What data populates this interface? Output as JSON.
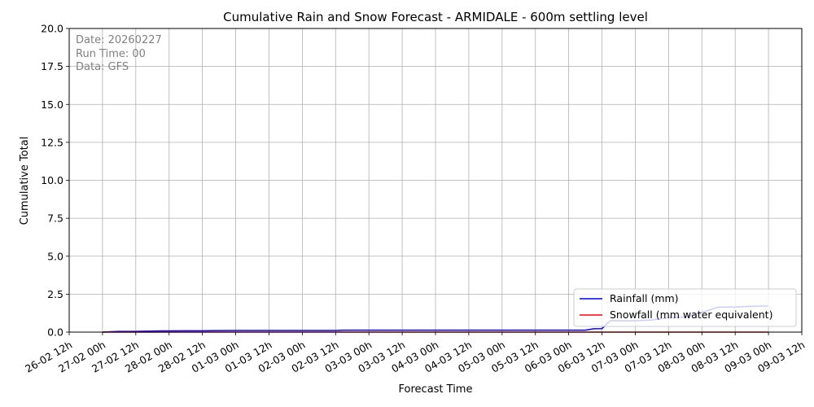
{
  "chart_data": {
    "type": "line",
    "title": "Cumulative Rain and Snow Forecast - ARMIDALE - 600m settling level",
    "xlabel": "Forecast Time",
    "ylabel": "Cumulative Total",
    "ylim": [
      0,
      20
    ],
    "yticks": [
      "0.0",
      "2.5",
      "5.0",
      "7.5",
      "10.0",
      "12.5",
      "15.0",
      "17.5",
      "20.0"
    ],
    "xlim": [
      "26-02 12h",
      "09-03 12h"
    ],
    "xticks": [
      "26-02 12h",
      "27-02 00h",
      "27-02 12h",
      "28-02 00h",
      "28-02 12h",
      "01-03 00h",
      "01-03 12h",
      "02-03 00h",
      "02-03 12h",
      "03-03 00h",
      "03-03 12h",
      "04-03 00h",
      "04-03 12h",
      "05-03 00h",
      "05-03 12h",
      "06-03 00h",
      "06-03 12h",
      "07-03 00h",
      "07-03 12h",
      "08-03 00h",
      "08-03 12h",
      "09-03 00h",
      "09-03 12h"
    ],
    "grid": true,
    "legend_position": "bottom-right",
    "info_lines": [
      "Date: 20260227",
      "Run Time: 00",
      "Data: GFS"
    ],
    "series": [
      {
        "name": "Rainfall (mm)",
        "color": "#0000ff",
        "x": [
          "27-02 00h",
          "27-02 03h",
          "27-02 06h",
          "27-02 09h",
          "27-02 12h",
          "27-02 15h",
          "27-02 18h",
          "27-02 21h",
          "28-02 00h",
          "28-02 06h",
          "28-02 12h",
          "28-02 18h",
          "01-03 00h",
          "01-03 06h",
          "01-03 12h",
          "01-03 18h",
          "02-03 00h",
          "02-03 06h",
          "02-03 12h",
          "02-03 15h",
          "03-03 00h",
          "03-03 12h",
          "04-03 00h",
          "04-03 12h",
          "05-03 00h",
          "05-03 12h",
          "06-03 00h",
          "06-03 03h",
          "06-03 06h",
          "06-03 09h",
          "06-03 12h",
          "06-03 15h",
          "06-03 18h",
          "07-03 00h",
          "07-03 06h",
          "07-03 12h",
          "07-03 18h",
          "08-03 00h",
          "08-03 06h",
          "08-03 12h",
          "08-03 18h",
          "09-03 00h"
        ],
        "y": [
          0.0,
          0.03,
          0.05,
          0.05,
          0.05,
          0.06,
          0.07,
          0.08,
          0.08,
          0.09,
          0.09,
          0.1,
          0.11,
          0.11,
          0.11,
          0.11,
          0.11,
          0.11,
          0.11,
          0.13,
          0.13,
          0.13,
          0.13,
          0.13,
          0.13,
          0.13,
          0.13,
          0.13,
          0.13,
          0.22,
          0.23,
          0.75,
          0.75,
          0.75,
          0.8,
          0.95,
          1.0,
          1.3,
          1.65,
          1.65,
          1.7,
          1.72
        ]
      },
      {
        "name": "Snowfall (mm water equivalent)",
        "color": "#ff0000",
        "x": [
          "27-02 00h",
          "09-03 00h"
        ],
        "y": [
          0.0,
          0.0
        ]
      }
    ]
  }
}
